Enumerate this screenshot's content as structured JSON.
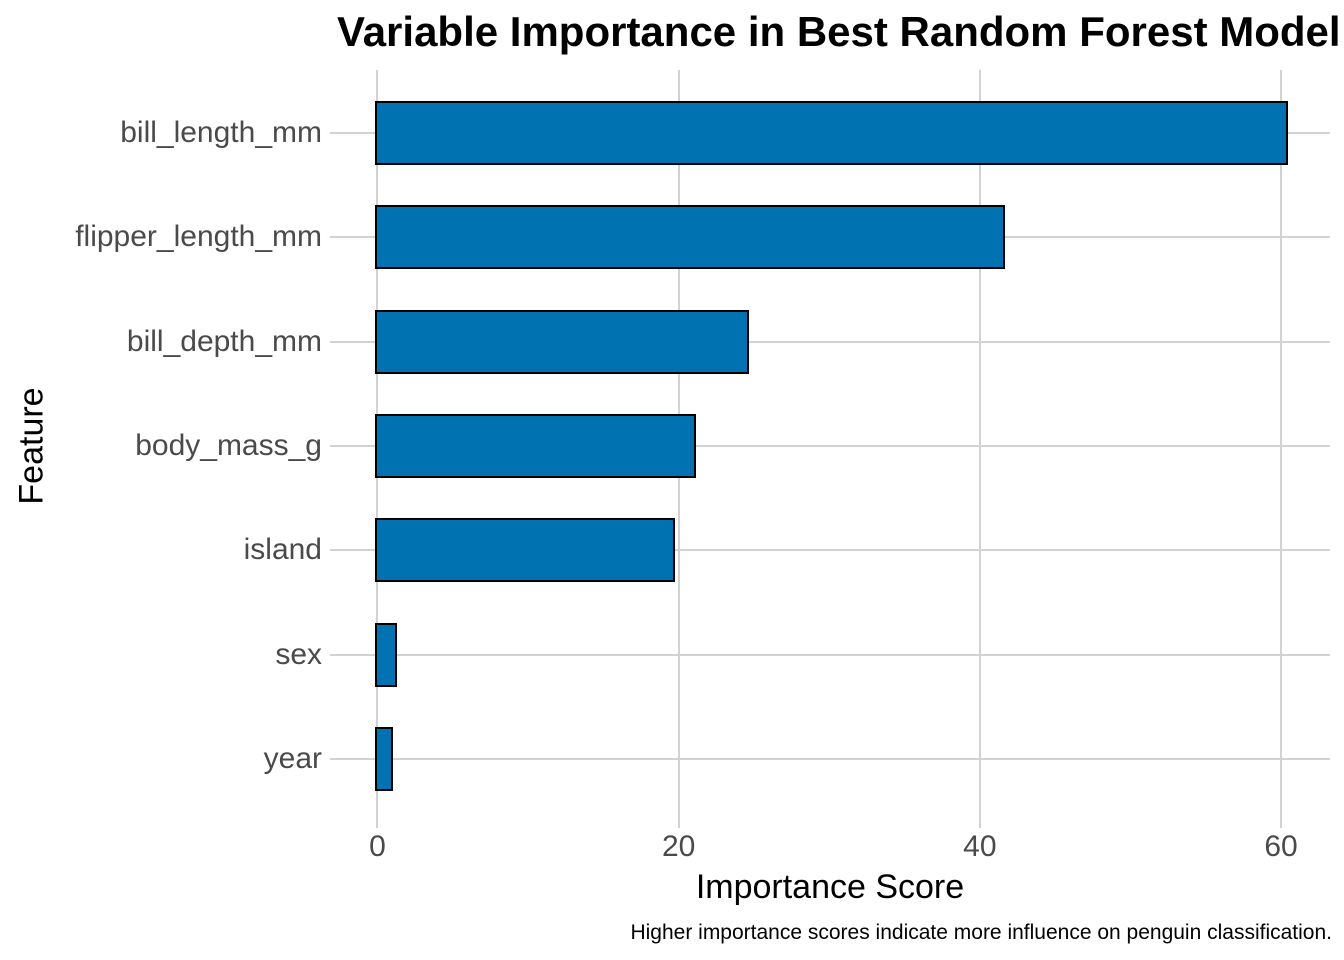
{
  "chart_data": {
    "type": "bar",
    "orientation": "horizontal",
    "title": "Variable Importance in Best Random Forest Model",
    "xlabel": "Importance Score",
    "ylabel": "Feature",
    "caption": "Higher importance scores indicate more influence on penguin classification.",
    "categories": [
      "bill_length_mm",
      "flipper_length_mm",
      "bill_depth_mm",
      "body_mass_g",
      "island",
      "sex",
      "year"
    ],
    "values": [
      60.3,
      41.5,
      24.5,
      21.0,
      19.6,
      1.1,
      0.85
    ],
    "x_ticks": [
      0,
      20,
      40,
      60
    ],
    "xlim": [
      -3.15,
      63.25
    ],
    "grid": "major-only",
    "legend": "none",
    "colors": {
      "bar_fill": "#0072B2",
      "bar_border": "#000000",
      "gridline": "#d2d2d2",
      "tick_label": "#4a4a4a",
      "title_text": "#000000",
      "background": "#ffffff"
    }
  }
}
